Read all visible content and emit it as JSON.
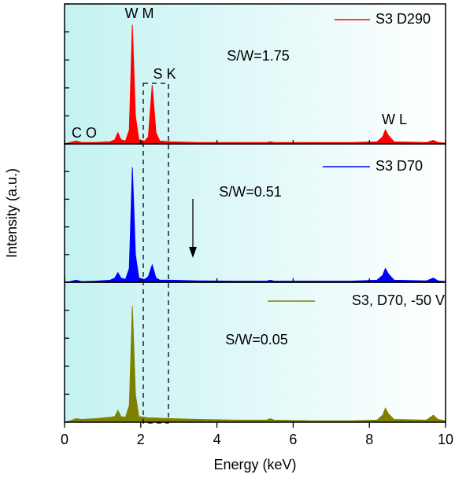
{
  "chart_data": [
    {
      "type": "area",
      "name": "S3 D290",
      "color": "#ff0000",
      "annotations": [
        "W M",
        "S K",
        "C O",
        "W L",
        "S/W=1.75"
      ],
      "x": [
        0,
        0.15,
        0.3,
        0.45,
        0.8,
        1.2,
        1.32,
        1.4,
        1.48,
        1.6,
        1.7,
        1.78,
        1.86,
        1.95,
        2.1,
        2.2,
        2.3,
        2.4,
        2.5,
        2.8,
        3.5,
        4.5,
        5.3,
        5.4,
        5.5,
        6.5,
        7.5,
        8.2,
        8.35,
        8.42,
        8.5,
        8.65,
        9.5,
        9.68,
        9.8,
        10
      ],
      "values": [
        0,
        1,
        2,
        1,
        1,
        1.5,
        3,
        8,
        3,
        2,
        10,
        85,
        20,
        3,
        2,
        5,
        42,
        8,
        2,
        1.5,
        1,
        1,
        1,
        1.5,
        1,
        1,
        1,
        1.5,
        5,
        10,
        6,
        1.5,
        1,
        2.5,
        1,
        0.5
      ],
      "xlim": [
        0,
        10
      ],
      "xticks": [
        0,
        2,
        4,
        6,
        8,
        10
      ],
      "ylim": [
        0,
        100
      ],
      "yticks": [
        0,
        20,
        40,
        60,
        80,
        100
      ]
    },
    {
      "type": "area",
      "name": "S3 D70",
      "color": "#0000ff",
      "annotations": [
        "S/W=0.51"
      ],
      "ylabel": "Intensity (a.u.)",
      "x": [
        0,
        0.15,
        0.3,
        0.45,
        0.8,
        1.2,
        1.32,
        1.4,
        1.48,
        1.6,
        1.7,
        1.78,
        1.86,
        1.95,
        2.1,
        2.2,
        2.3,
        2.4,
        2.5,
        2.8,
        3.5,
        4.5,
        5.3,
        5.4,
        5.5,
        6.5,
        7.5,
        8.2,
        8.35,
        8.42,
        8.5,
        8.65,
        9.5,
        9.68,
        9.8,
        10
      ],
      "values": [
        0,
        0.5,
        1.5,
        0.5,
        0.8,
        1.5,
        3,
        7,
        3,
        2,
        10,
        83,
        20,
        3,
        2,
        4,
        12.5,
        3,
        1.5,
        1.5,
        1,
        0.8,
        0.8,
        1.5,
        0.8,
        0.8,
        0.8,
        1.5,
        5,
        10,
        6,
        1.5,
        1,
        3,
        1,
        0.5
      ],
      "xlim": [
        0,
        10
      ],
      "xticks": [
        0,
        2,
        4,
        6,
        8,
        10
      ],
      "ylim": [
        0,
        100
      ],
      "yticks": [
        0,
        20,
        40,
        60,
        80,
        100
      ]
    },
    {
      "type": "area",
      "name": "S3, D70, -50 V",
      "color": "#808000",
      "annotations": [
        "S/W=0.05"
      ],
      "xlabel": "Energy (keV)",
      "x": [
        0,
        0.15,
        0.3,
        0.45,
        0.8,
        1.2,
        1.32,
        1.4,
        1.48,
        1.6,
        1.7,
        1.78,
        1.86,
        1.95,
        2.1,
        2.2,
        2.3,
        2.4,
        2.5,
        2.8,
        3.5,
        4.5,
        5.3,
        5.4,
        5.5,
        6.5,
        7.5,
        8.2,
        8.35,
        8.42,
        8.5,
        8.65,
        9.5,
        9.68,
        9.8,
        10
      ],
      "values": [
        0,
        1,
        2.5,
        2,
        2.5,
        3.5,
        4,
        8.5,
        4,
        3.5,
        12,
        83,
        20,
        4,
        3.5,
        3,
        3,
        3,
        2.8,
        2.5,
        2,
        1.5,
        1.5,
        2.5,
        1.5,
        1,
        1,
        1.5,
        5,
        10,
        6,
        2,
        1.5,
        5,
        2,
        1
      ],
      "xlim": [
        0,
        10
      ],
      "xticks": [
        0,
        2,
        4,
        6,
        8,
        10
      ],
      "ylim": [
        0,
        100
      ],
      "yticks": [
        0,
        20,
        40,
        60,
        80,
        100
      ]
    }
  ]
}
